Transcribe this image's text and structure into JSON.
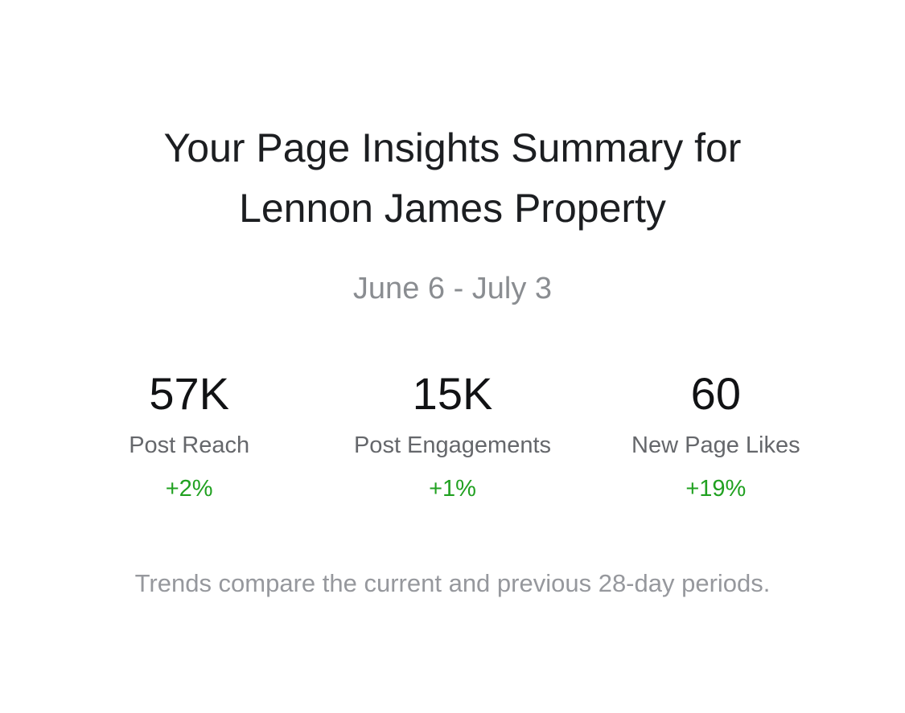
{
  "header": {
    "title_line1": "Your Page Insights Summary for",
    "title_line2": "Lennon James Property",
    "date_range": "June 6 - July 3"
  },
  "metrics": [
    {
      "value": "57K",
      "label": "Post Reach",
      "trend": "+2%"
    },
    {
      "value": "15K",
      "label": "Post Engagements",
      "trend": "+1%"
    },
    {
      "value": "60",
      "label": "New Page Likes",
      "trend": "+19%"
    }
  ],
  "footer": {
    "note": "Trends compare the current and previous 28-day periods."
  },
  "colors": {
    "text_primary": "#1c1e21",
    "text_secondary": "#65676b",
    "text_muted": "#96989d",
    "date_gray": "#8a8d91",
    "trend_positive_green": "#21a121",
    "background": "#ffffff"
  }
}
